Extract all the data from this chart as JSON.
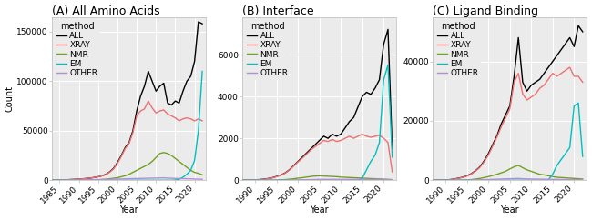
{
  "titles": [
    "(A) All Amino Acids",
    "(B) Interface",
    "(C) Ligand Binding"
  ],
  "xlabel": "Year",
  "ylabel": "Count",
  "methods": [
    "ALL",
    "XRAY",
    "NMR",
    "EM",
    "OTHER"
  ],
  "colors": {
    "ALL": "#000000",
    "XRAY": "#F07070",
    "NMR": "#70A020",
    "EM": "#00BFBF",
    "OTHER": "#B090D0"
  },
  "linewidth": 1.0,
  "bg_color": "#EBEBEB",
  "grid_color": "#FFFFFF",
  "title_fontsize": 9,
  "axis_fontsize": 7,
  "tick_fontsize": 6.5,
  "legend_fontsize": 6.5,
  "legend_title_fontsize": 7,
  "panel_A": {
    "ylim": [
      0,
      165000
    ],
    "yticks": [
      0,
      50000,
      100000,
      150000
    ],
    "ytick_labels": [
      "0",
      "50000",
      "100000",
      "150000"
    ],
    "xlim": [
      1983,
      2023
    ],
    "xticks": [
      1985,
      1990,
      1995,
      2000,
      2005,
      2010,
      2015,
      2020
    ],
    "ALL": [
      1983,
      0,
      1984,
      100,
      1985,
      200,
      1986,
      350,
      1987,
      500,
      1988,
      700,
      1989,
      900,
      1990,
      1100,
      1991,
      1400,
      1992,
      1800,
      1993,
      2200,
      1994,
      2800,
      1995,
      3500,
      1996,
      4500,
      1997,
      6000,
      1998,
      8500,
      1999,
      12000,
      2000,
      18000,
      2001,
      25000,
      2002,
      33000,
      2003,
      38000,
      2004,
      50000,
      2005,
      70000,
      2006,
      85000,
      2007,
      95000,
      2008,
      110000,
      2009,
      100000,
      2010,
      90000,
      2011,
      95000,
      2012,
      98000,
      2013,
      78000,
      2014,
      76000,
      2015,
      80000,
      2016,
      78000,
      2017,
      90000,
      2018,
      100000,
      2019,
      105000,
      2020,
      120000,
      2021,
      160000,
      2022,
      158000
    ],
    "XRAY": [
      1983,
      0,
      1984,
      100,
      1985,
      200,
      1986,
      350,
      1987,
      500,
      1988,
      700,
      1989,
      900,
      1990,
      1100,
      1991,
      1400,
      1992,
      1800,
      1993,
      2200,
      1994,
      2800,
      1995,
      3500,
      1996,
      4500,
      1997,
      5800,
      1998,
      8200,
      1999,
      11500,
      2000,
      17000,
      2001,
      24000,
      2002,
      32000,
      2003,
      37000,
      2004,
      48000,
      2005,
      65000,
      2006,
      70000,
      2007,
      72000,
      2008,
      80000,
      2009,
      73000,
      2010,
      68000,
      2011,
      70000,
      2012,
      71000,
      2013,
      67000,
      2014,
      65000,
      2015,
      63000,
      2016,
      60000,
      2017,
      62000,
      2018,
      63000,
      2019,
      62000,
      2020,
      60000,
      2021,
      62000,
      2022,
      60000
    ],
    "NMR": [
      1983,
      0,
      1984,
      0,
      1985,
      0,
      1986,
      0,
      1987,
      0,
      1988,
      0,
      1989,
      0,
      1990,
      0,
      1991,
      0,
      1992,
      50,
      1993,
      100,
      1994,
      200,
      1995,
      400,
      1996,
      700,
      1997,
      1000,
      1998,
      1500,
      1999,
      2000,
      2000,
      2500,
      2001,
      3500,
      2002,
      4500,
      2003,
      6000,
      2004,
      8000,
      2005,
      10000,
      2006,
      12000,
      2007,
      14000,
      2008,
      16000,
      2009,
      19000,
      2010,
      23000,
      2011,
      27000,
      2012,
      28000,
      2013,
      27000,
      2014,
      25000,
      2015,
      22000,
      2016,
      19000,
      2017,
      16000,
      2018,
      13000,
      2019,
      10000,
      2020,
      8000,
      2021,
      7000,
      2022,
      5500
    ],
    "EM": [
      1983,
      0,
      1984,
      0,
      1985,
      0,
      1986,
      0,
      1987,
      0,
      1988,
      0,
      1989,
      0,
      1990,
      0,
      1991,
      0,
      1992,
      0,
      1993,
      0,
      1994,
      0,
      1995,
      0,
      1996,
      0,
      1997,
      0,
      1998,
      0,
      1999,
      0,
      2000,
      0,
      2001,
      0,
      2002,
      0,
      2003,
      0,
      2004,
      0,
      2005,
      0,
      2006,
      0,
      2007,
      0,
      2008,
      0,
      2009,
      0,
      2010,
      0,
      2011,
      0,
      2012,
      0,
      2013,
      0,
      2014,
      0,
      2015,
      200,
      2016,
      1000,
      2017,
      3000,
      2018,
      6000,
      2019,
      10000,
      2020,
      20000,
      2021,
      50000,
      2022,
      110000
    ],
    "OTHER": [
      1983,
      0,
      1984,
      0,
      1985,
      0,
      1986,
      50,
      1987,
      100,
      1988,
      150,
      1989,
      200,
      1990,
      250,
      1991,
      300,
      1992,
      400,
      1993,
      500,
      1994,
      600,
      1995,
      700,
      1996,
      800,
      1997,
      900,
      1998,
      1000,
      1999,
      1100,
      2000,
      1200,
      2001,
      1300,
      2002,
      1400,
      2003,
      1500,
      2004,
      1600,
      2005,
      1700,
      2006,
      1800,
      2007,
      1900,
      2008,
      2000,
      2009,
      2100,
      2010,
      2200,
      2011,
      2300,
      2012,
      2400,
      2013,
      2100,
      2014,
      2000,
      2015,
      1800,
      2016,
      1700,
      2017,
      1600,
      2018,
      1500,
      2019,
      1400,
      2020,
      1200,
      2021,
      1100,
      2022,
      1000
    ]
  },
  "panel_B": {
    "ylim": [
      0,
      7800
    ],
    "yticks": [
      0,
      2000,
      4000,
      6000
    ],
    "ytick_labels": [
      "0",
      "2000",
      "4000",
      "6000"
    ],
    "xlim": [
      1987,
      2023
    ],
    "xticks": [
      1990,
      1995,
      2000,
      2005,
      2010,
      2015,
      2020
    ],
    "ALL": [
      1987,
      0,
      1988,
      5,
      1989,
      10,
      1990,
      20,
      1991,
      30,
      1992,
      50,
      1993,
      80,
      1994,
      120,
      1995,
      180,
      1996,
      250,
      1997,
      350,
      1998,
      500,
      1999,
      700,
      2000,
      900,
      2001,
      1100,
      2002,
      1300,
      2003,
      1500,
      2004,
      1700,
      2005,
      1900,
      2006,
      2100,
      2007,
      2000,
      2008,
      2200,
      2009,
      2100,
      2010,
      2200,
      2011,
      2500,
      2012,
      2800,
      2013,
      3000,
      2014,
      3500,
      2015,
      4000,
      2016,
      4200,
      2017,
      4100,
      2018,
      4400,
      2019,
      4800,
      2020,
      6500,
      2021,
      7200,
      2022,
      1500
    ],
    "XRAY": [
      1987,
      0,
      1988,
      5,
      1989,
      10,
      1990,
      15,
      1991,
      25,
      1992,
      45,
      1993,
      75,
      1994,
      110,
      1995,
      170,
      1996,
      240,
      1997,
      340,
      1998,
      490,
      1999,
      680,
      2000,
      880,
      2001,
      1050,
      2002,
      1250,
      2003,
      1450,
      2004,
      1600,
      2005,
      1750,
      2006,
      1900,
      2007,
      1850,
      2008,
      1950,
      2009,
      1850,
      2010,
      1900,
      2011,
      2000,
      2012,
      2100,
      2013,
      2000,
      2014,
      2100,
      2015,
      2200,
      2016,
      2100,
      2017,
      2050,
      2018,
      2100,
      2019,
      2150,
      2020,
      2000,
      2021,
      1800,
      2022,
      400
    ],
    "NMR": [
      1987,
      0,
      1988,
      0,
      1989,
      0,
      1990,
      0,
      1991,
      0,
      1992,
      0,
      1993,
      0,
      1994,
      0,
      1995,
      10,
      1996,
      20,
      1997,
      30,
      1998,
      50,
      1999,
      70,
      2000,
      100,
      2001,
      120,
      2002,
      150,
      2003,
      180,
      2004,
      200,
      2005,
      210,
      2006,
      200,
      2007,
      190,
      2008,
      180,
      2009,
      170,
      2010,
      150,
      2011,
      140,
      2012,
      130,
      2013,
      120,
      2014,
      110,
      2015,
      100,
      2016,
      90,
      2017,
      80,
      2018,
      70,
      2019,
      60,
      2020,
      50,
      2021,
      40,
      2022,
      30
    ],
    "EM": [
      1987,
      0,
      1988,
      0,
      1989,
      0,
      1990,
      0,
      1991,
      0,
      1992,
      0,
      1993,
      0,
      1994,
      0,
      1995,
      0,
      1996,
      0,
      1997,
      0,
      1998,
      0,
      1999,
      0,
      2000,
      0,
      2001,
      0,
      2002,
      0,
      2003,
      0,
      2004,
      0,
      2005,
      0,
      2006,
      0,
      2007,
      0,
      2008,
      0,
      2009,
      0,
      2010,
      0,
      2011,
      0,
      2012,
      0,
      2013,
      0,
      2014,
      0,
      2015,
      100,
      2016,
      500,
      2017,
      900,
      2018,
      1200,
      2019,
      1800,
      2020,
      4800,
      2021,
      5500,
      2022,
      1100
    ],
    "OTHER": [
      1987,
      0,
      1988,
      0,
      1989,
      0,
      1990,
      0,
      1991,
      0,
      1992,
      0,
      1993,
      0,
      1994,
      0,
      1995,
      0,
      1996,
      0,
      1997,
      0,
      1998,
      0,
      1999,
      10,
      2000,
      15,
      2001,
      20,
      2002,
      25,
      2003,
      30,
      2004,
      35,
      2005,
      40,
      2006,
      45,
      2007,
      40,
      2008,
      45,
      2009,
      40,
      2010,
      40,
      2011,
      40,
      2012,
      45,
      2013,
      40,
      2014,
      45,
      2015,
      40,
      2016,
      40,
      2017,
      40,
      2018,
      40,
      2019,
      40,
      2020,
      35,
      2021,
      30,
      2022,
      20
    ]
  },
  "panel_C": {
    "ylim": [
      0,
      55000
    ],
    "yticks": [
      0,
      20000,
      40000
    ],
    "ytick_labels": [
      "0",
      "20000",
      "40000"
    ],
    "xlim": [
      1987,
      2023
    ],
    "xticks": [
      1990,
      1995,
      2000,
      2005,
      2010,
      2015,
      2020
    ],
    "ALL": [
      1987,
      0,
      1988,
      30,
      1989,
      60,
      1990,
      100,
      1991,
      200,
      1992,
      400,
      1993,
      700,
      1994,
      1000,
      1995,
      1500,
      1996,
      2200,
      1997,
      3200,
      1998,
      4500,
      1999,
      6500,
      2000,
      9000,
      2001,
      12000,
      2002,
      15000,
      2003,
      19000,
      2004,
      22000,
      2005,
      25000,
      2006,
      35000,
      2007,
      48000,
      2008,
      33000,
      2009,
      30000,
      2010,
      32000,
      2011,
      33000,
      2012,
      34000,
      2013,
      36000,
      2014,
      38000,
      2015,
      40000,
      2016,
      42000,
      2017,
      44000,
      2018,
      46000,
      2019,
      48000,
      2020,
      45000,
      2021,
      52000,
      2022,
      50000
    ],
    "XRAY": [
      1987,
      0,
      1988,
      30,
      1989,
      55,
      1990,
      90,
      1991,
      180,
      1992,
      370,
      1993,
      650,
      1994,
      950,
      1995,
      1400,
      1996,
      2100,
      1997,
      3100,
      1998,
      4300,
      1999,
      6200,
      2000,
      8500,
      2001,
      11500,
      2002,
      14500,
      2003,
      18000,
      2004,
      21000,
      2005,
      24000,
      2006,
      33000,
      2007,
      36000,
      2008,
      29000,
      2009,
      27000,
      2010,
      28000,
      2011,
      29000,
      2012,
      31000,
      2013,
      32000,
      2014,
      34000,
      2015,
      36000,
      2016,
      35000,
      2017,
      36000,
      2018,
      37000,
      2019,
      38000,
      2020,
      35000,
      2021,
      35000,
      2022,
      33000
    ],
    "NMR": [
      1987,
      0,
      1988,
      0,
      1989,
      0,
      1990,
      0,
      1991,
      0,
      1992,
      0,
      1993,
      0,
      1994,
      50,
      1995,
      100,
      1996,
      200,
      1997,
      400,
      1998,
      600,
      1999,
      900,
      2000,
      1200,
      2001,
      1600,
      2002,
      2000,
      2003,
      2500,
      2004,
      3000,
      2005,
      3800,
      2006,
      4500,
      2007,
      5000,
      2008,
      4200,
      2009,
      3500,
      2010,
      3000,
      2011,
      2500,
      2012,
      2000,
      2013,
      1800,
      2014,
      1500,
      2015,
      1200,
      2016,
      1000,
      2017,
      900,
      2018,
      800,
      2019,
      700,
      2020,
      600,
      2021,
      500,
      2022,
      400
    ],
    "EM": [
      1987,
      0,
      1988,
      0,
      1989,
      0,
      1990,
      0,
      1991,
      0,
      1992,
      0,
      1993,
      0,
      1994,
      0,
      1995,
      0,
      1996,
      0,
      1997,
      0,
      1998,
      0,
      1999,
      0,
      2000,
      0,
      2001,
      0,
      2002,
      0,
      2003,
      0,
      2004,
      0,
      2005,
      0,
      2006,
      0,
      2007,
      0,
      2008,
      0,
      2009,
      0,
      2010,
      0,
      2011,
      0,
      2012,
      0,
      2013,
      0,
      2014,
      100,
      2015,
      2000,
      2016,
      5000,
      2017,
      7000,
      2018,
      9000,
      2019,
      11000,
      2020,
      25000,
      2021,
      26000,
      2022,
      8000
    ],
    "OTHER": [
      1987,
      0,
      1988,
      0,
      1989,
      0,
      1990,
      0,
      1991,
      0,
      1992,
      0,
      1993,
      0,
      1994,
      0,
      1995,
      0,
      1996,
      50,
      1997,
      100,
      1998,
      150,
      1999,
      200,
      2000,
      250,
      2001,
      300,
      2002,
      350,
      2003,
      400,
      2004,
      450,
      2005,
      500,
      2006,
      550,
      2007,
      600,
      2008,
      500,
      2009,
      450,
      2010,
      400,
      2011,
      380,
      2012,
      360,
      2013,
      340,
      2014,
      320,
      2015,
      300,
      2016,
      280,
      2017,
      260,
      2018,
      240,
      2019,
      220,
      2020,
      200,
      2021,
      180,
      2022,
      160
    ]
  }
}
